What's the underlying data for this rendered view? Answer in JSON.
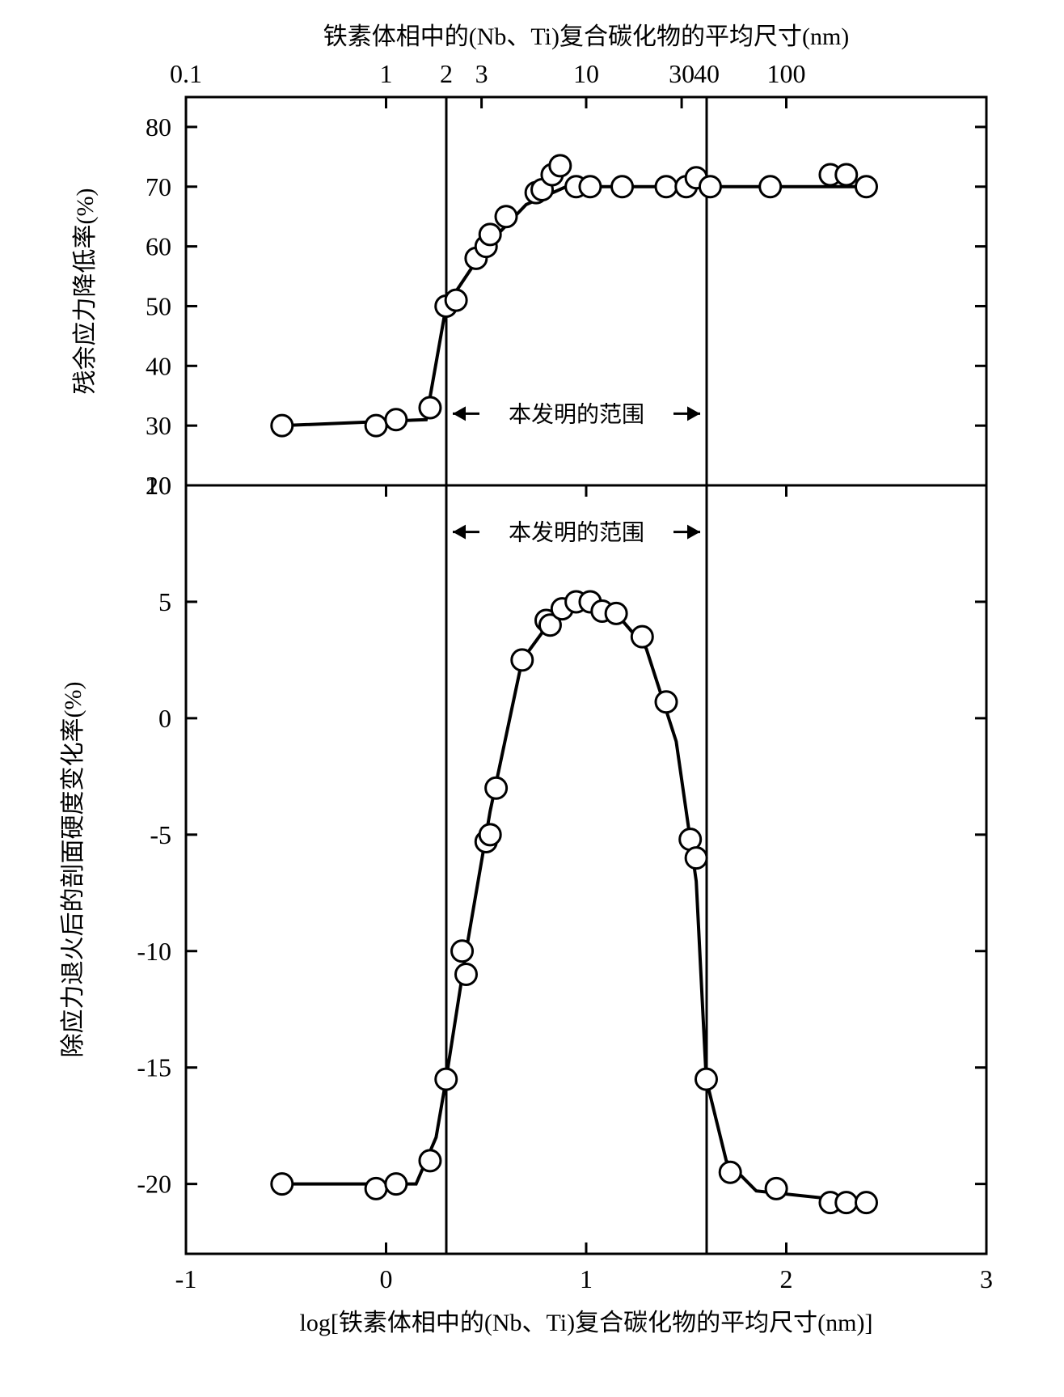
{
  "top_title": "铁素体相中的(Nb、Ti)复合碳化物的平均尺寸(nm)",
  "bottom_xlabel": "log[铁素体相中的(Nb、Ti)复合碳化物的平均尺寸(nm)]",
  "range_label": "本发明的范围",
  "vline_left_log": 0.301,
  "vline_right_log": 1.602,
  "x_axis": {
    "min": -1,
    "max": 3,
    "bottom_ticks": [
      -1,
      0,
      1,
      2,
      3
    ],
    "top_ticks_nm": [
      0.1,
      1,
      2,
      3,
      10,
      30,
      40,
      100
    ]
  },
  "top_chart": {
    "type": "scatter-line",
    "ylabel": "残余应力降低率(%)",
    "ylim": [
      20,
      85
    ],
    "yticks": [
      20,
      30,
      40,
      50,
      60,
      70,
      80
    ],
    "marker_radius": 13,
    "points": [
      {
        "x": -0.52,
        "y": 30
      },
      {
        "x": -0.05,
        "y": 30
      },
      {
        "x": 0.05,
        "y": 31
      },
      {
        "x": 0.22,
        "y": 33
      },
      {
        "x": 0.3,
        "y": 50
      },
      {
        "x": 0.35,
        "y": 51
      },
      {
        "x": 0.45,
        "y": 58
      },
      {
        "x": 0.5,
        "y": 60
      },
      {
        "x": 0.52,
        "y": 62
      },
      {
        "x": 0.6,
        "y": 65
      },
      {
        "x": 0.75,
        "y": 69
      },
      {
        "x": 0.78,
        "y": 69.5
      },
      {
        "x": 0.83,
        "y": 72
      },
      {
        "x": 0.87,
        "y": 73.5
      },
      {
        "x": 0.95,
        "y": 70
      },
      {
        "x": 1.02,
        "y": 70
      },
      {
        "x": 1.18,
        "y": 70
      },
      {
        "x": 1.4,
        "y": 70
      },
      {
        "x": 1.5,
        "y": 70
      },
      {
        "x": 1.55,
        "y": 71.5
      },
      {
        "x": 1.62,
        "y": 70
      },
      {
        "x": 1.92,
        "y": 70
      },
      {
        "x": 2.22,
        "y": 72
      },
      {
        "x": 2.3,
        "y": 72
      },
      {
        "x": 2.4,
        "y": 70
      }
    ],
    "line": [
      {
        "x": -0.52,
        "y": 30
      },
      {
        "x": 0.2,
        "y": 31
      },
      {
        "x": 0.3,
        "y": 50
      },
      {
        "x": 0.5,
        "y": 60
      },
      {
        "x": 0.7,
        "y": 67
      },
      {
        "x": 0.9,
        "y": 70
      },
      {
        "x": 2.4,
        "y": 70
      }
    ]
  },
  "bottom_chart": {
    "type": "scatter-line",
    "ylabel": "除应力退火后的剖面硬度变化率(%)",
    "ylim": [
      -23,
      10
    ],
    "yticks": [
      -20,
      -15,
      -10,
      -5,
      0,
      5,
      10
    ],
    "marker_radius": 13,
    "points": [
      {
        "x": -0.52,
        "y": -20
      },
      {
        "x": -0.05,
        "y": -20.2
      },
      {
        "x": 0.05,
        "y": -20
      },
      {
        "x": 0.22,
        "y": -19
      },
      {
        "x": 0.3,
        "y": -15.5
      },
      {
        "x": 0.38,
        "y": -10
      },
      {
        "x": 0.4,
        "y": -11
      },
      {
        "x": 0.5,
        "y": -5.3
      },
      {
        "x": 0.52,
        "y": -5
      },
      {
        "x": 0.55,
        "y": -3
      },
      {
        "x": 0.68,
        "y": 2.5
      },
      {
        "x": 0.8,
        "y": 4.2
      },
      {
        "x": 0.82,
        "y": 4.0
      },
      {
        "x": 0.88,
        "y": 4.7
      },
      {
        "x": 0.95,
        "y": 5
      },
      {
        "x": 1.02,
        "y": 5
      },
      {
        "x": 1.08,
        "y": 4.6
      },
      {
        "x": 1.15,
        "y": 4.5
      },
      {
        "x": 1.28,
        "y": 3.5
      },
      {
        "x": 1.4,
        "y": 0.7
      },
      {
        "x": 1.52,
        "y": -5.2
      },
      {
        "x": 1.55,
        "y": -6
      },
      {
        "x": 1.6,
        "y": -15.5
      },
      {
        "x": 1.72,
        "y": -19.5
      },
      {
        "x": 1.95,
        "y": -20.2
      },
      {
        "x": 2.22,
        "y": -20.8
      },
      {
        "x": 2.3,
        "y": -20.8
      },
      {
        "x": 2.4,
        "y": -20.8
      }
    ],
    "line": [
      {
        "x": -0.52,
        "y": -20
      },
      {
        "x": 0.15,
        "y": -20
      },
      {
        "x": 0.25,
        "y": -18
      },
      {
        "x": 0.3,
        "y": -15.5
      },
      {
        "x": 0.4,
        "y": -10
      },
      {
        "x": 0.52,
        "y": -4
      },
      {
        "x": 0.68,
        "y": 2.5
      },
      {
        "x": 0.85,
        "y": 4.5
      },
      {
        "x": 1.0,
        "y": 5
      },
      {
        "x": 1.15,
        "y": 4.5
      },
      {
        "x": 1.3,
        "y": 3
      },
      {
        "x": 1.45,
        "y": -1
      },
      {
        "x": 1.55,
        "y": -7
      },
      {
        "x": 1.6,
        "y": -15.5
      },
      {
        "x": 1.7,
        "y": -19
      },
      {
        "x": 1.85,
        "y": -20.3
      },
      {
        "x": 2.4,
        "y": -20.8
      }
    ]
  },
  "style": {
    "background_color": "#ffffff",
    "line_color": "#000000",
    "marker_fill": "#ffffff",
    "marker_stroke": "#000000",
    "axis_stroke_width": 3,
    "line_stroke_width": 4,
    "marker_stroke_width": 3,
    "title_fontsize": 30,
    "axis_label_fontsize": 30,
    "tick_label_fontsize": 32,
    "range_label_fontsize": 28
  }
}
